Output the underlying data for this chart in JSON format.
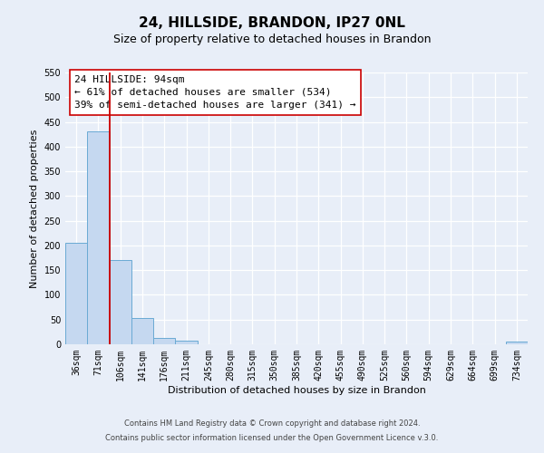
{
  "title": "24, HILLSIDE, BRANDON, IP27 0NL",
  "subtitle": "Size of property relative to detached houses in Brandon",
  "xlabel": "Distribution of detached houses by size in Brandon",
  "ylabel": "Number of detached properties",
  "bin_labels": [
    "36sqm",
    "71sqm",
    "106sqm",
    "141sqm",
    "176sqm",
    "211sqm",
    "245sqm",
    "280sqm",
    "315sqm",
    "350sqm",
    "385sqm",
    "420sqm",
    "455sqm",
    "490sqm",
    "525sqm",
    "560sqm",
    "594sqm",
    "629sqm",
    "664sqm",
    "699sqm",
    "734sqm"
  ],
  "bar_values": [
    205,
    430,
    170,
    53,
    12,
    8,
    0,
    0,
    0,
    0,
    0,
    0,
    0,
    0,
    0,
    0,
    0,
    0,
    0,
    0,
    5
  ],
  "bar_color": "#c5d8f0",
  "bar_edge_color": "#6aaad4",
  "ylim": [
    0,
    550
  ],
  "yticks": [
    0,
    50,
    100,
    150,
    200,
    250,
    300,
    350,
    400,
    450,
    500,
    550
  ],
  "vertical_line_color": "#cc0000",
  "annotation_title": "24 HILLSIDE: 94sqm",
  "annotation_line1": "← 61% of detached houses are smaller (534)",
  "annotation_line2": "39% of semi-detached houses are larger (341) →",
  "annotation_box_color": "#ffffff",
  "annotation_box_edge": "#cc0000",
  "footer1": "Contains HM Land Registry data © Crown copyright and database right 2024.",
  "footer2": "Contains public sector information licensed under the Open Government Licence v.3.0.",
  "background_color": "#e8eef8",
  "plot_bg_color": "#e8eef8",
  "grid_color": "#ffffff",
  "title_fontsize": 11,
  "subtitle_fontsize": 9,
  "axis_label_fontsize": 8,
  "tick_fontsize": 7,
  "annotation_fontsize": 8,
  "footer_fontsize": 6
}
